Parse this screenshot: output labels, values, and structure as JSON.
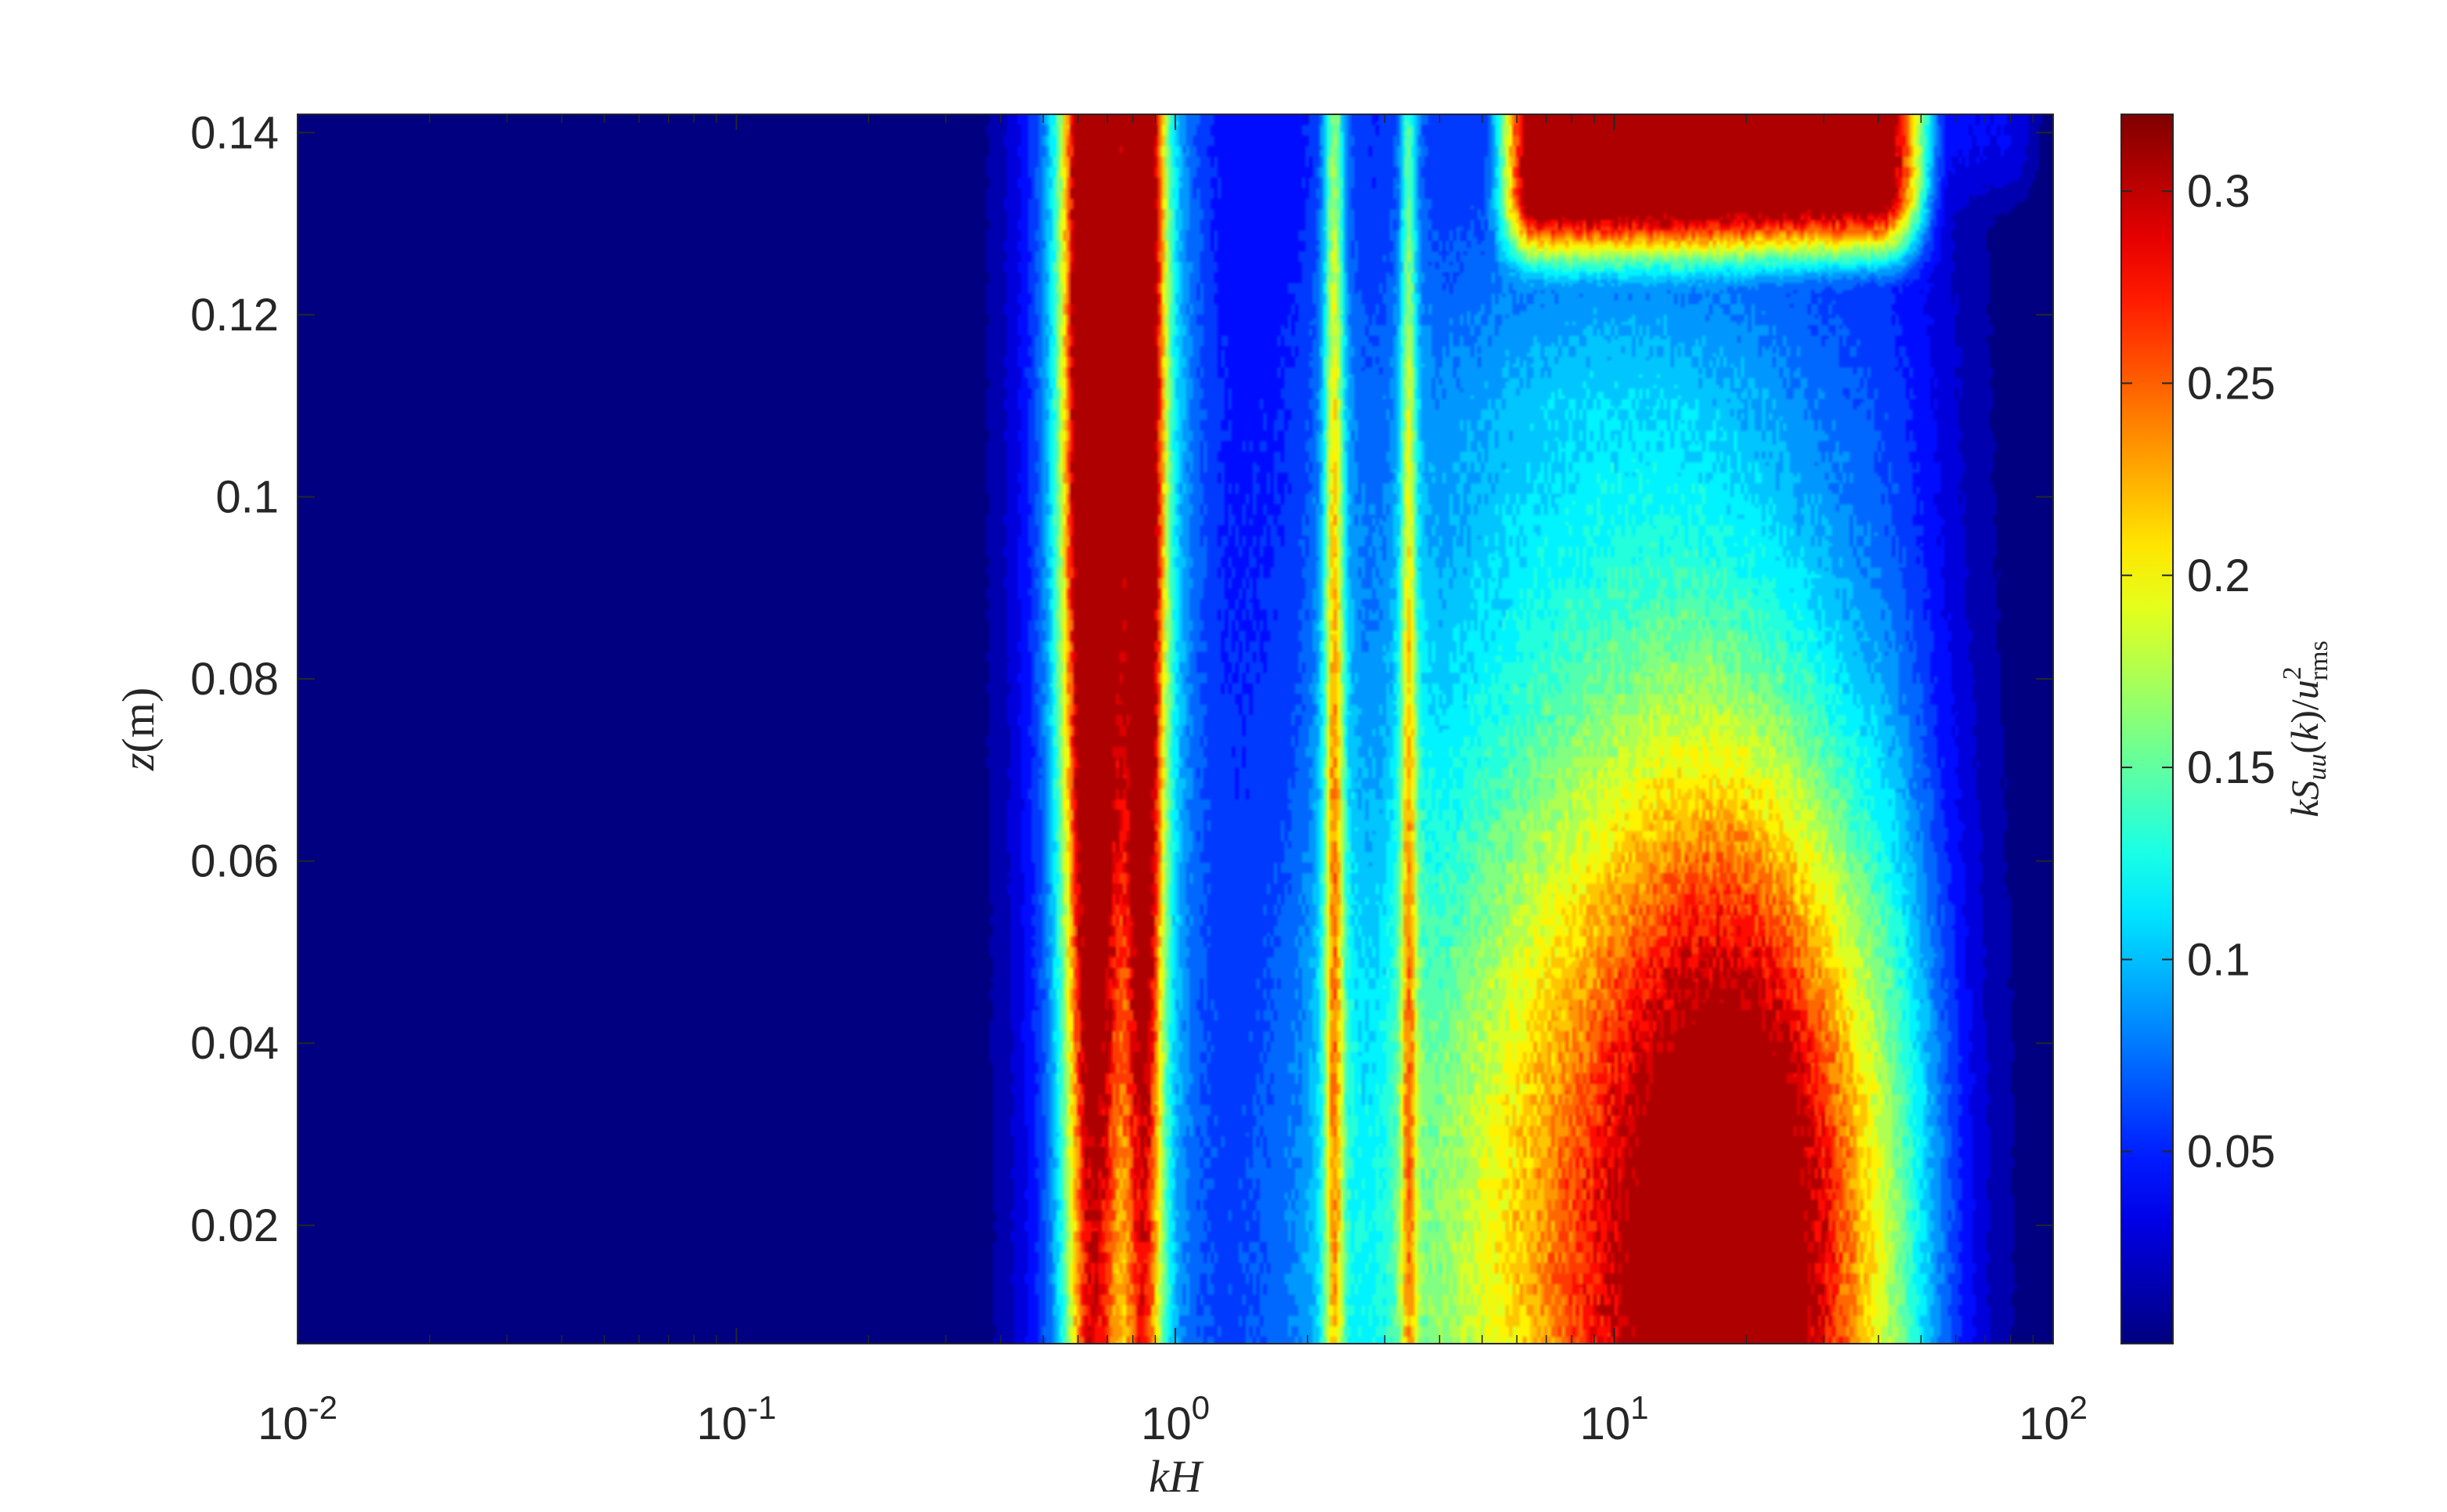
{
  "chart_data": {
    "type": "heatmap",
    "title": "",
    "xscale": "log",
    "xlim": [
      0.01,
      100
    ],
    "ylim": [
      0.007,
      0.142
    ],
    "x_ticks": [
      {
        "value": 0.01,
        "base": "10",
        "exp": "-2"
      },
      {
        "value": 0.1,
        "base": "10",
        "exp": "-1"
      },
      {
        "value": 1,
        "base": "10",
        "exp": "0"
      },
      {
        "value": 10,
        "base": "10",
        "exp": "1"
      },
      {
        "value": 100,
        "base": "10",
        "exp": "2"
      }
    ],
    "y_ticks": [
      {
        "value": 0.02,
        "label": "0.02"
      },
      {
        "value": 0.04,
        "label": "0.04"
      },
      {
        "value": 0.06,
        "label": "0.06"
      },
      {
        "value": 0.08,
        "label": "0.08"
      },
      {
        "value": 0.1,
        "label": "0.1"
      },
      {
        "value": 0.12,
        "label": "0.12"
      },
      {
        "value": 0.14,
        "label": "0.14"
      }
    ],
    "xlabel": "kH",
    "ylabel": "z(m)",
    "colorbar": {
      "label": "kS_uu(k)/u_rms^2",
      "range": [
        0.0,
        0.32
      ],
      "colormap": "jet",
      "ticks": [
        {
          "value": 0.05,
          "label": "0.05"
        },
        {
          "value": 0.1,
          "label": "0.1"
        },
        {
          "value": 0.15,
          "label": "0.15"
        },
        {
          "value": 0.2,
          "label": "0.2"
        },
        {
          "value": 0.25,
          "label": "0.25"
        },
        {
          "value": 0.3,
          "label": "0.3"
        }
      ]
    },
    "grid": false,
    "features": [
      {
        "kind": "ridge",
        "kH": 0.65,
        "z_range": [
          0.007,
          0.142
        ],
        "peak": 0.32,
        "peak_z": 0.115,
        "width_decades": 0.045
      },
      {
        "kind": "ridge",
        "kH": 0.85,
        "z_range": [
          0.007,
          0.142
        ],
        "peak": 0.26,
        "peak_z": 0.11,
        "width_decades": 0.03
      },
      {
        "kind": "ridge",
        "kH": 2.3,
        "z_range": [
          0.007,
          0.142
        ],
        "peak": 0.13,
        "peak_z": 0.07,
        "width_decades": 0.015
      },
      {
        "kind": "ridge",
        "kH": 3.4,
        "z_range": [
          0.007,
          0.142
        ],
        "peak": 0.1,
        "peak_z": 0.07,
        "width_decades": 0.012
      },
      {
        "kind": "blob",
        "kH_center": 14,
        "z_center": 0.022,
        "peak": 0.23,
        "spread_decades": 0.45
      },
      {
        "kind": "blob",
        "kH_center": 20,
        "z_center": 0.012,
        "peak": 0.26,
        "spread_decades": 0.2
      },
      {
        "kind": "band",
        "kH_range": [
          6,
          45
        ],
        "z_range": [
          0.13,
          0.142
        ],
        "peak": 0.3
      }
    ]
  }
}
